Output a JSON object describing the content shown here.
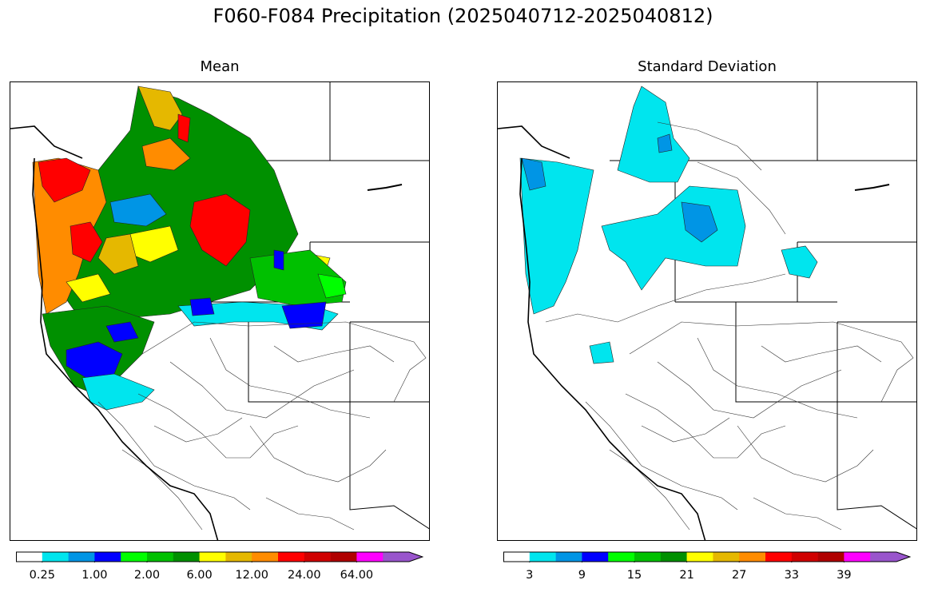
{
  "figure": {
    "title": "F060-F084 Precipitation (2025040712-2025040812)"
  },
  "panels": [
    {
      "id": "mean",
      "title": "Mean"
    },
    {
      "id": "std",
      "title": "Standard Deviation"
    }
  ],
  "colorbars": {
    "mean": {
      "colors": [
        "#ffffff",
        "#00e5ee",
        "#0095e5",
        "#0000ff",
        "#00ff00",
        "#00c000",
        "#009000",
        "#ffff00",
        "#e5b800",
        "#ff8c00",
        "#ff0000",
        "#d00000",
        "#b00000",
        "#ff00ff",
        "#9955cc"
      ],
      "tick_labels": [
        "0.25",
        "1.00",
        "2.00",
        "6.00",
        "12.00",
        "24.00",
        "64.00"
      ]
    },
    "std": {
      "colors": [
        "#ffffff",
        "#00e5ee",
        "#0095e5",
        "#0000ff",
        "#00ff00",
        "#00c000",
        "#009000",
        "#ffff00",
        "#e5b800",
        "#ff8c00",
        "#ff0000",
        "#d00000",
        "#b00000",
        "#ff00ff",
        "#9955cc"
      ],
      "tick_labels": [
        "3",
        "9",
        "15",
        "21",
        "27",
        "33",
        "39"
      ]
    }
  }
}
